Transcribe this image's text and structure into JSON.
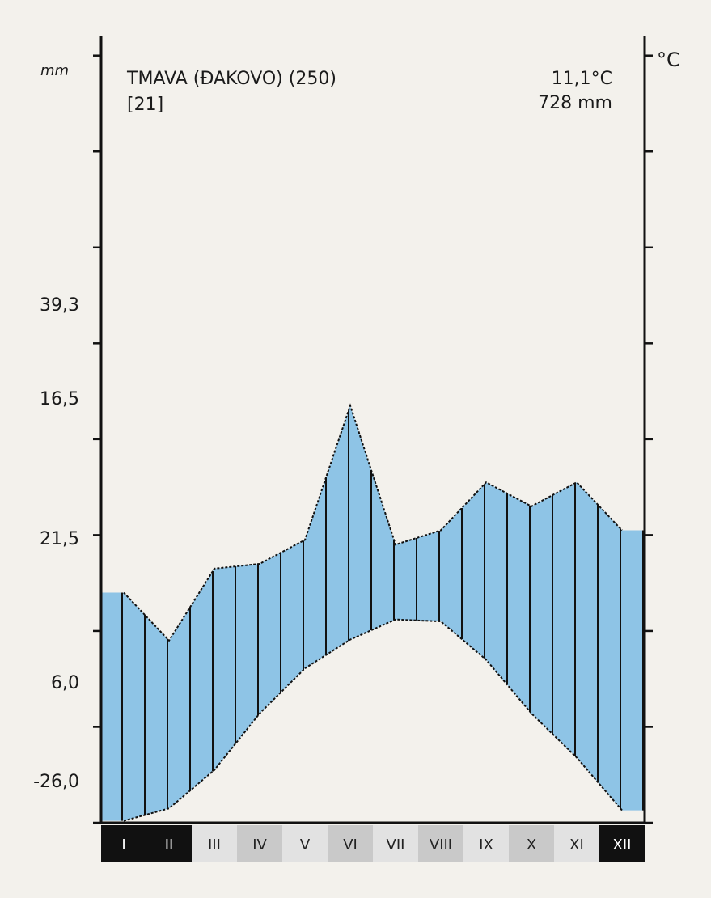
{
  "chart_data": {
    "type": "climate",
    "title": "TMAVA (ĐAKOVO) (250)",
    "subtitle": "[21]",
    "mean_temperature": "11,1°C",
    "annual_precipitation": "728 mm",
    "y_label": "mm",
    "y2_label": "°C",
    "side_labels": [
      "39,3",
      "16,5",
      "21,5",
      "6,0",
      "-26,0"
    ],
    "categories": [
      "I",
      "II",
      "III",
      "IV",
      "V",
      "VI",
      "VII",
      "VIII",
      "IX",
      "X",
      "XI",
      "XII"
    ],
    "series": [
      {
        "name": "precipitation",
        "color": "#111111",
        "values": [
          48,
          38,
          53,
          54,
          59,
          87,
          58,
          61,
          71,
          66,
          71,
          61
        ]
      },
      {
        "name": "temperature",
        "color": "#111111",
        "axis": "y2",
        "values": [
          0.2,
          1.5,
          5.5,
          11.4,
          16.1,
          19.1,
          21.2,
          21,
          17,
          11.4,
          6.8,
          1.3
        ]
      }
    ],
    "fill_color": "#8ec4e6",
    "ylim": [
      0,
      164
    ],
    "y2lim": [
      0,
      82
    ],
    "y2ticks": [
      0,
      10,
      20,
      30,
      40,
      50,
      60,
      70,
      80
    ]
  }
}
